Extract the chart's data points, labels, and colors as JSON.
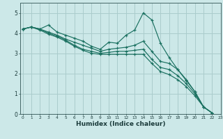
{
  "xlabel": "Humidex (Indice chaleur)",
  "background_color": "#cce8e8",
  "grid_color": "#aacccc",
  "line_color": "#1a7060",
  "xlim": [
    -0.3,
    23
  ],
  "ylim": [
    0,
    5.5
  ],
  "yticks": [
    0,
    1,
    2,
    3,
    4,
    5
  ],
  "xticks": [
    0,
    1,
    2,
    3,
    4,
    5,
    6,
    7,
    8,
    9,
    10,
    11,
    12,
    13,
    14,
    15,
    16,
    17,
    18,
    19,
    20,
    21,
    22,
    23
  ],
  "series": [
    [
      4.2,
      4.3,
      4.2,
      4.4,
      4.05,
      3.9,
      3.75,
      3.6,
      3.35,
      3.2,
      3.55,
      3.5,
      3.9,
      4.15,
      5.0,
      4.65,
      3.5,
      2.8,
      2.2,
      1.7,
      1.1,
      0.35,
      0.05
    ],
    [
      4.2,
      4.3,
      4.2,
      4.05,
      3.9,
      3.7,
      3.55,
      3.4,
      3.25,
      3.1,
      3.2,
      3.25,
      3.3,
      3.4,
      3.6,
      3.1,
      2.6,
      2.5,
      2.2,
      1.65,
      1.1,
      0.35,
      0.05
    ],
    [
      4.2,
      4.3,
      4.2,
      4.0,
      3.85,
      3.65,
      3.4,
      3.2,
      3.1,
      3.0,
      3.05,
      3.1,
      3.1,
      3.15,
      3.2,
      2.7,
      2.3,
      2.2,
      1.9,
      1.5,
      1.0,
      0.35,
      0.05
    ],
    [
      4.2,
      4.3,
      4.15,
      3.95,
      3.8,
      3.6,
      3.35,
      3.15,
      3.0,
      2.95,
      2.95,
      2.95,
      2.95,
      2.95,
      2.95,
      2.5,
      2.1,
      1.95,
      1.7,
      1.35,
      0.9,
      0.35,
      0.05
    ]
  ]
}
